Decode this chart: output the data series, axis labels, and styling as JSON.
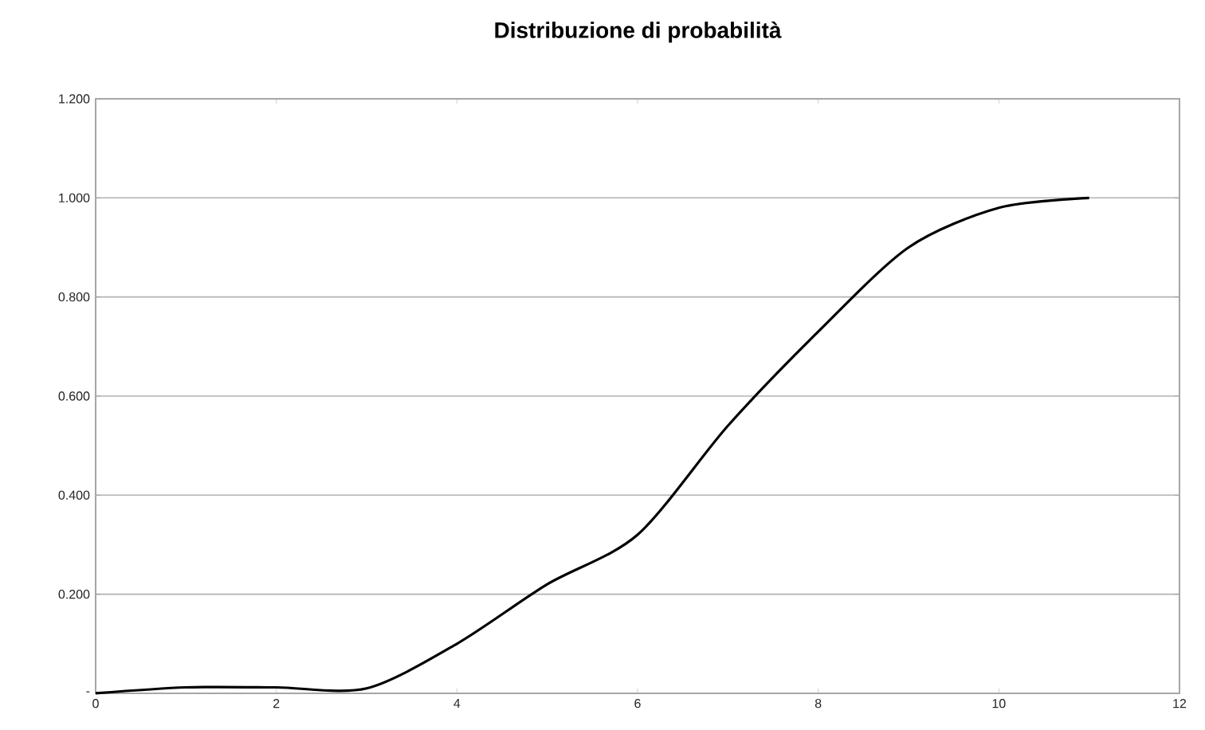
{
  "chart_data": {
    "type": "line",
    "title": "Distribuzione di probabilità",
    "x": [
      0,
      1,
      2,
      3,
      4,
      5,
      6,
      7,
      8,
      9,
      10,
      11
    ],
    "series": [
      {
        "color": "#000000",
        "values": [
          0,
          0.012,
          0.012,
          0.01,
          0.1,
          0.22,
          0.32,
          0.54,
          0.73,
          0.9,
          0.98,
          1.0
        ]
      }
    ],
    "xlim": [
      0,
      12
    ],
    "xticks": [
      0,
      2,
      4,
      6,
      8,
      10,
      12
    ],
    "ylim": [
      0,
      1.2
    ],
    "yticks": [
      {
        "value": 0,
        "label": "-"
      },
      {
        "value": 0.2,
        "label": "0.200"
      },
      {
        "value": 0.4,
        "label": "0.400"
      },
      {
        "value": 0.6,
        "label": "0.600"
      },
      {
        "value": 0.8,
        "label": "0.800"
      },
      {
        "value": 1.0,
        "label": "1.000"
      },
      {
        "value": 1.2,
        "label": "1.200"
      }
    ],
    "grid": "y",
    "marker": "none",
    "line_style": "solid"
  }
}
